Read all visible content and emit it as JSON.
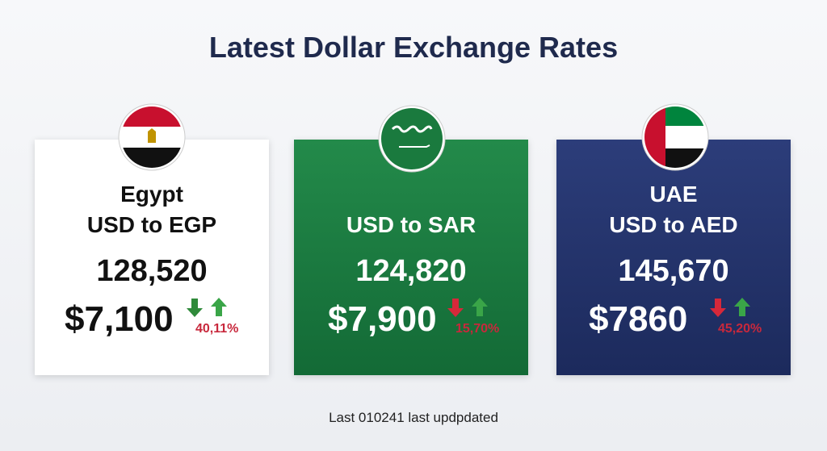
{
  "header": {
    "title": "Latest Dollar Exchange Rates"
  },
  "cards": [
    {
      "country": "Egypt",
      "pair": "USD to EGP",
      "rate": "128,520",
      "price": "$7,100",
      "change": "40,11%"
    },
    {
      "pair": "USD to SAR",
      "rate": "124,820",
      "price": "$7,900",
      "change": "15,70%"
    },
    {
      "country": "UAE",
      "pair": "USD to AED",
      "rate": "145,670",
      "price": "$7860",
      "change": "45,20%"
    }
  ],
  "footer": {
    "note": "Last 010241 last updpdated"
  }
}
